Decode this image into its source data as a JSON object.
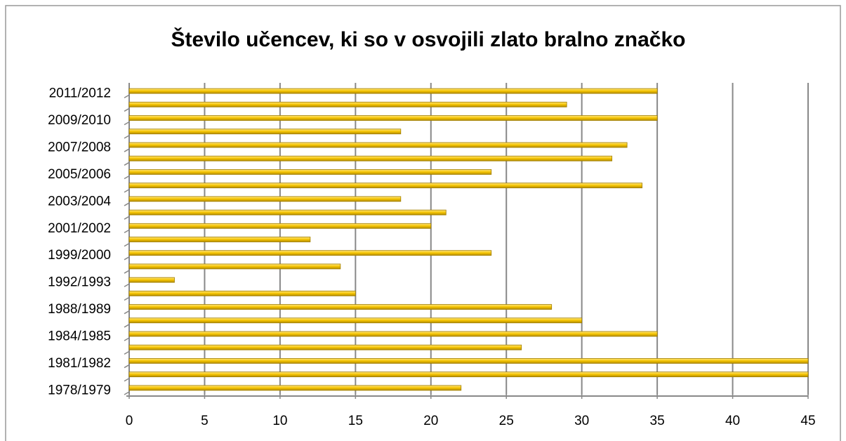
{
  "chart_data": {
    "type": "bar",
    "orientation": "horizontal",
    "title": "Število učencev, ki so v osvojili zlato bralno značko",
    "categories": [
      "1978/1979",
      null,
      "1981/1982",
      null,
      "1984/1985",
      null,
      "1988/1989",
      null,
      "1992/1993",
      null,
      "1999/2000",
      null,
      "2001/2002",
      null,
      "2003/2004",
      null,
      "2005/2006",
      null,
      "2007/2008",
      null,
      "2009/2010",
      null,
      "2011/2012"
    ],
    "values": [
      22,
      45,
      45,
      26,
      35,
      30,
      28,
      15,
      3,
      14,
      24,
      12,
      20,
      21,
      18,
      34,
      24,
      32,
      33,
      18,
      35,
      29,
      35
    ],
    "color": "#f5c400",
    "xlim": [
      0,
      45
    ],
    "xticks": [
      0,
      5,
      10,
      15,
      20,
      25,
      30,
      35,
      40,
      45
    ],
    "grid": true
  }
}
